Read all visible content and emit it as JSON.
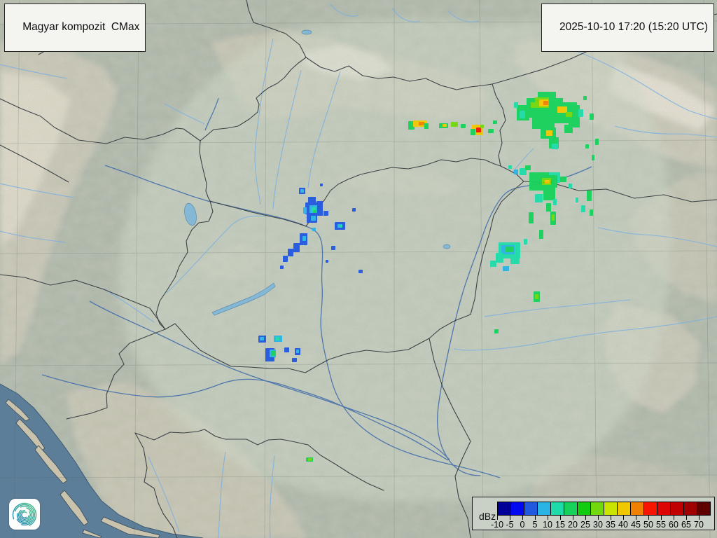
{
  "header": {
    "title": "Magyar kompozit  CMax",
    "timestamp": "2025-10-10 17:20 (15:20 UTC)"
  },
  "legend": {
    "unit_label": "dBz",
    "tick_labels": [
      "-10",
      "-5",
      "0",
      "5",
      "10",
      "15",
      "20",
      "25",
      "30",
      "35",
      "40",
      "45",
      "50",
      "55",
      "60",
      "65",
      "70"
    ],
    "colors": [
      "#000096",
      "#0008f0",
      "#2258e0",
      "#2ab4e6",
      "#1edcaa",
      "#16d25c",
      "#12cc12",
      "#72d80e",
      "#c8e400",
      "#f0c800",
      "#f08000",
      "#f81400",
      "#dc0404",
      "#c00000",
      "#a00000",
      "#5e0000"
    ]
  },
  "logo": {
    "name": "hungaromet-spiral",
    "gradient": [
      "#55c08c",
      "#2aa39b",
      "#1f7fb0"
    ]
  },
  "radar": {
    "product": "CMax composite",
    "echo_palette_note": "colors match legend dBz scale",
    "echoes": [
      [
        583,
        173,
        9,
        12,
        "#16d25c"
      ],
      [
        590,
        172,
        19,
        9,
        "#f0c800"
      ],
      [
        598,
        174,
        8,
        5,
        "#f08000"
      ],
      [
        606,
        176,
        6,
        8,
        "#16d25c"
      ],
      [
        627,
        176,
        13,
        7,
        "#16d25c"
      ],
      [
        632,
        177,
        6,
        4,
        "#f0c800"
      ],
      [
        644,
        174,
        10,
        7,
        "#72d80e"
      ],
      [
        658,
        177,
        7,
        6,
        "#16d25c"
      ],
      [
        674,
        178,
        16,
        15,
        "#f0c800"
      ],
      [
        672,
        184,
        7,
        9,
        "#16d25c"
      ],
      [
        680,
        182,
        7,
        7,
        "#f81400"
      ],
      [
        686,
        178,
        5,
        5,
        "#72d80e"
      ],
      [
        697,
        184,
        8,
        6,
        "#16d25c"
      ],
      [
        704,
        172,
        6,
        5,
        "#16d25c"
      ],
      [
        752,
        140,
        52,
        28,
        "#16d25c"
      ],
      [
        738,
        150,
        18,
        22,
        "#16d25c"
      ],
      [
        768,
        131,
        26,
        13,
        "#16d25c"
      ],
      [
        790,
        158,
        36,
        18,
        "#16d25c"
      ],
      [
        800,
        146,
        24,
        14,
        "#16d25c"
      ],
      [
        760,
        168,
        32,
        16,
        "#16d25c"
      ],
      [
        812,
        150,
        16,
        32,
        "#16d25c"
      ],
      [
        772,
        182,
        22,
        16,
        "#16d25c"
      ],
      [
        784,
        196,
        14,
        16,
        "#16d25c"
      ],
      [
        806,
        178,
        12,
        12,
        "#16d25c"
      ],
      [
        764,
        139,
        20,
        15,
        "#72d80e"
      ],
      [
        770,
        142,
        13,
        10,
        "#f0c800"
      ],
      [
        776,
        144,
        7,
        6,
        "#f08000"
      ],
      [
        796,
        152,
        14,
        9,
        "#f0c800"
      ],
      [
        808,
        160,
        9,
        7,
        "#72d80e"
      ],
      [
        780,
        186,
        9,
        8,
        "#f0c800"
      ],
      [
        758,
        146,
        8,
        8,
        "#72d80e"
      ],
      [
        742,
        158,
        8,
        11,
        "#1edcaa"
      ],
      [
        826,
        156,
        7,
        11,
        "#1edcaa"
      ],
      [
        788,
        205,
        9,
        8,
        "#1edcaa"
      ],
      [
        734,
        146,
        6,
        8,
        "#1edcaa"
      ],
      [
        842,
        162,
        6,
        9,
        "#16d25c"
      ],
      [
        850,
        198,
        5,
        9,
        "#16d25c"
      ],
      [
        836,
        206,
        5,
        6,
        "#16d25c"
      ],
      [
        845,
        221,
        4,
        8,
        "#16d25c"
      ],
      [
        833,
        137,
        5,
        6,
        "#16d25c"
      ],
      [
        742,
        240,
        10,
        10,
        "#1edcaa"
      ],
      [
        756,
        246,
        28,
        26,
        "#16d25c"
      ],
      [
        784,
        246,
        16,
        15,
        "#1edcaa"
      ],
      [
        772,
        250,
        24,
        18,
        "#16d25c"
      ],
      [
        776,
        268,
        17,
        18,
        "#16d25c"
      ],
      [
        764,
        277,
        11,
        12,
        "#1edcaa"
      ],
      [
        774,
        254,
        13,
        10,
        "#72d80e"
      ],
      [
        778,
        257,
        7,
        5,
        "#f0c800"
      ],
      [
        800,
        252,
        9,
        8,
        "#16d25c"
      ],
      [
        812,
        262,
        5,
        7,
        "#1edcaa"
      ],
      [
        780,
        290,
        7,
        12,
        "#16d25c"
      ],
      [
        790,
        284,
        5,
        9,
        "#1edcaa"
      ],
      [
        734,
        242,
        6,
        7,
        "#2ab4e6"
      ],
      [
        726,
        236,
        5,
        5,
        "#1edcaa"
      ],
      [
        750,
        236,
        8,
        7,
        "#16d25c"
      ],
      [
        838,
        272,
        7,
        15,
        "#16d25c"
      ],
      [
        830,
        293,
        6,
        10,
        "#1edcaa"
      ],
      [
        842,
        299,
        5,
        9,
        "#16d25c"
      ],
      [
        822,
        282,
        4,
        7,
        "#1edcaa"
      ],
      [
        755,
        303,
        7,
        16,
        "#16d25c"
      ],
      [
        786,
        302,
        8,
        19,
        "#16d25c"
      ],
      [
        788,
        306,
        4,
        9,
        "#72d80e"
      ],
      [
        770,
        328,
        6,
        13,
        "#16d25c"
      ],
      [
        748,
        341,
        5,
        8,
        "#1edcaa"
      ],
      [
        736,
        353,
        6,
        10,
        "#1edcaa"
      ],
      [
        712,
        346,
        31,
        23,
        "#1edcaa"
      ],
      [
        716,
        350,
        19,
        13,
        "#2ab4e6"
      ],
      [
        722,
        352,
        11,
        8,
        "#16d25c"
      ],
      [
        708,
        361,
        11,
        14,
        "#1edcaa"
      ],
      [
        729,
        366,
        13,
        11,
        "#1edcaa"
      ],
      [
        700,
        372,
        9,
        9,
        "#1edcaa"
      ],
      [
        718,
        380,
        9,
        7,
        "#2ab4e6"
      ],
      [
        762,
        416,
        9,
        15,
        "#16d25c"
      ],
      [
        764,
        420,
        5,
        7,
        "#72d80e"
      ],
      [
        706,
        470,
        6,
        6,
        "#16d25c"
      ],
      [
        437,
        653,
        10,
        6,
        "#16d25c"
      ],
      [
        440,
        654,
        5,
        4,
        "#72d80e"
      ],
      [
        427,
        268,
        9,
        9,
        "#2258e0"
      ],
      [
        429,
        270,
        5,
        5,
        "#2ab4e6"
      ],
      [
        440,
        281,
        11,
        9,
        "#2258e0"
      ],
      [
        436,
        289,
        21,
        17,
        "#2258e0"
      ],
      [
        452,
        287,
        9,
        21,
        "#2258e0"
      ],
      [
        442,
        293,
        11,
        11,
        "#2ab4e6"
      ],
      [
        445,
        296,
        6,
        7,
        "#1edcaa"
      ],
      [
        438,
        305,
        15,
        13,
        "#2258e0"
      ],
      [
        444,
        308,
        7,
        7,
        "#2ab4e6"
      ],
      [
        433,
        296,
        5,
        9,
        "#2ab4e6"
      ],
      [
        447,
        300,
        4,
        4,
        "#16d25c"
      ],
      [
        462,
        301,
        7,
        7,
        "#2258e0"
      ],
      [
        457,
        262,
        4,
        4,
        "#2258e0"
      ],
      [
        478,
        317,
        15,
        11,
        "#2258e0"
      ],
      [
        482,
        320,
        7,
        5,
        "#2ab4e6"
      ],
      [
        485,
        321,
        4,
        4,
        "#1edcaa"
      ],
      [
        503,
        297,
        5,
        5,
        "#2258e0"
      ],
      [
        428,
        333,
        11,
        17,
        "#2258e0"
      ],
      [
        432,
        337,
        5,
        7,
        "#2ab4e6"
      ],
      [
        419,
        347,
        9,
        13,
        "#2258e0"
      ],
      [
        411,
        355,
        8,
        11,
        "#2258e0"
      ],
      [
        404,
        365,
        7,
        9,
        "#2258e0"
      ],
      [
        446,
        325,
        5,
        5,
        "#2ab4e6"
      ],
      [
        473,
        351,
        6,
        6,
        "#2258e0"
      ],
      [
        400,
        379,
        5,
        5,
        "#2258e0"
      ],
      [
        465,
        371,
        4,
        4,
        "#2258e0"
      ],
      [
        512,
        385,
        6,
        5,
        "#2258e0"
      ],
      [
        369,
        479,
        11,
        10,
        "#2258e0"
      ],
      [
        371,
        481,
        6,
        5,
        "#2ab4e6"
      ],
      [
        391,
        479,
        12,
        9,
        "#2ab4e6"
      ],
      [
        394,
        481,
        5,
        5,
        "#1edcaa"
      ],
      [
        379,
        497,
        13,
        19,
        "#2258e0"
      ],
      [
        385,
        499,
        9,
        11,
        "#2ab4e6"
      ],
      [
        387,
        501,
        6,
        7,
        "#16d25c"
      ],
      [
        406,
        496,
        7,
        7,
        "#2258e0"
      ],
      [
        421,
        497,
        8,
        10,
        "#2258e0"
      ],
      [
        423,
        499,
        4,
        5,
        "#2ab4e6"
      ],
      [
        417,
        511,
        7,
        6,
        "#2258e0"
      ]
    ]
  }
}
